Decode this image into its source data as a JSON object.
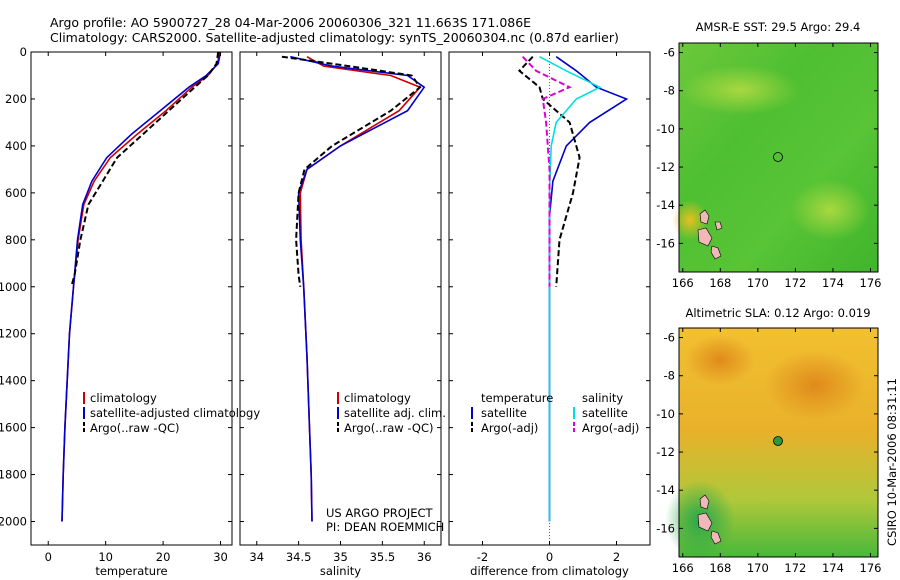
{
  "header": {
    "line1": "Argo profile: AO 5900727_28 04-Mar-2006 20060306_321 11.663S 171.086E",
    "line2": "Climatology: CARS2000. Satellite-adjusted climatology: synTS_20060304.nc (0.87d earlier)"
  },
  "colors": {
    "climatology": "#cc0000",
    "satellite": "#0000cc",
    "argo": "#000000",
    "sal_satellite": "#00e0e0",
    "sal_argo": "#dd00dd"
  },
  "chart_data": [
    {
      "type": "line",
      "xlabel": "temperature",
      "xlim": [
        -3,
        32
      ],
      "ylim": [
        2100,
        0
      ],
      "xticks": [
        0,
        10,
        20,
        30
      ],
      "yticks": [
        0,
        200,
        400,
        600,
        800,
        1000,
        1200,
        1400,
        1600,
        1800,
        2000
      ],
      "legend": [
        "climatology",
        "satellite-adjusted climatology",
        "Argo(..raw -QC)"
      ],
      "series": [
        {
          "name": "climatology",
          "style": "solid",
          "color": "#cc0000",
          "x": [
            29.8,
            29.5,
            27.8,
            25.0,
            20.5,
            15.5,
            10.8,
            8.0,
            6.2,
            5.2,
            4.4,
            3.7,
            3.3,
            2.9,
            2.6,
            2.4
          ],
          "y": [
            0,
            50,
            100,
            150,
            250,
            350,
            450,
            550,
            650,
            800,
            1000,
            1200,
            1400,
            1600,
            1800,
            2000
          ]
        },
        {
          "name": "satellite-adjusted climatology",
          "style": "solid",
          "color": "#0000cc",
          "x": [
            30.0,
            29.6,
            27.5,
            24.5,
            19.5,
            14.5,
            10.2,
            7.6,
            6.0,
            5.1,
            4.4,
            3.7,
            3.3,
            2.9,
            2.6,
            2.4
          ],
          "y": [
            0,
            50,
            100,
            150,
            250,
            350,
            450,
            550,
            650,
            800,
            1000,
            1200,
            1400,
            1600,
            1800,
            2000
          ]
        },
        {
          "name": "Argo(..raw -QC)",
          "style": "dash",
          "color": "#000000",
          "x": [
            29.6,
            29.3,
            27.8,
            25.5,
            21.0,
            16.5,
            12.0,
            9.5,
            7.0,
            5.6,
            4.6,
            4.0
          ],
          "y": [
            0,
            50,
            100,
            150,
            250,
            350,
            450,
            550,
            650,
            800,
            950,
            1000
          ]
        }
      ]
    },
    {
      "type": "line",
      "xlabel": "salinity",
      "xlim": [
        33.8,
        36.2
      ],
      "ylim": [
        2100,
        0
      ],
      "xticks": [
        34,
        34.5,
        35,
        35.5,
        36
      ],
      "legend": [
        "climatology",
        "satellite adj. clim.",
        "Argo(..raw -QC)"
      ],
      "series": [
        {
          "name": "climatology",
          "style": "solid",
          "color": "#cc0000",
          "x": [
            34.6,
            34.8,
            35.6,
            35.95,
            35.7,
            35.0,
            34.6,
            34.52,
            34.53,
            34.56,
            34.6,
            34.63,
            34.65,
            34.66
          ],
          "y": [
            20,
            60,
            100,
            150,
            250,
            400,
            500,
            600,
            800,
            1000,
            1300,
            1600,
            1800,
            2000
          ]
        },
        {
          "name": "satellite adj. clim.",
          "style": "solid",
          "color": "#0000cc",
          "x": [
            34.4,
            34.9,
            35.8,
            36.0,
            35.8,
            35.0,
            34.6,
            34.5,
            34.52,
            34.56,
            34.6,
            34.63,
            34.65,
            34.66
          ],
          "y": [
            20,
            60,
            100,
            150,
            250,
            400,
            500,
            600,
            800,
            1000,
            1300,
            1600,
            1800,
            2000
          ]
        },
        {
          "name": "Argo(..raw -QC)",
          "style": "dash",
          "color": "#000000",
          "x": [
            34.3,
            35.1,
            35.85,
            35.95,
            35.6,
            34.9,
            34.57,
            34.5,
            34.47,
            34.5,
            34.52
          ],
          "y": [
            20,
            60,
            100,
            150,
            250,
            400,
            500,
            600,
            800,
            950,
            1000
          ]
        }
      ]
    },
    {
      "type": "line",
      "xlabel": "difference from climatology",
      "xlim": [
        -3,
        3
      ],
      "ylim": [
        2100,
        0
      ],
      "xticks": [
        -2,
        0,
        2
      ],
      "legend_groups": [
        {
          "title": "temperature",
          "items": [
            "satellite",
            "Argo(-adj)"
          ]
        },
        {
          "title": "salinity",
          "items": [
            "satellite",
            "Argo(-adj)"
          ]
        }
      ],
      "series": [
        {
          "name": "temperature satellite",
          "style": "solid",
          "color": "#0000cc",
          "x": [
            0.2,
            0.8,
            1.4,
            2.3,
            1.2,
            0.5,
            0.1,
            0.0,
            0.0
          ],
          "y": [
            20,
            80,
            150,
            200,
            300,
            400,
            550,
            700,
            2000
          ]
        },
        {
          "name": "temperature Argo(-adj)",
          "style": "dash",
          "color": "#000000",
          "x": [
            -0.5,
            -0.9,
            -0.3,
            -0.2,
            0.6,
            0.9,
            0.7,
            0.3,
            0.2
          ],
          "y": [
            20,
            80,
            150,
            200,
            300,
            450,
            600,
            800,
            1000
          ]
        },
        {
          "name": "salinity satellite",
          "style": "solid",
          "color": "#00e0e0",
          "x": [
            -0.3,
            0.5,
            1.5,
            0.8,
            0.2,
            0.05,
            0.0,
            0.0
          ],
          "y": [
            20,
            80,
            150,
            200,
            300,
            400,
            600,
            2000
          ]
        },
        {
          "name": "salinity Argo(-adj)",
          "style": "dash",
          "color": "#dd00dd",
          "x": [
            -0.8,
            -0.4,
            0.6,
            -0.2,
            -0.1,
            0.0,
            0.0,
            0.0
          ],
          "y": [
            20,
            80,
            150,
            200,
            300,
            500,
            800,
            1000
          ]
        }
      ]
    },
    {
      "type": "heatmap",
      "title": "AMSR-E SST: 29.5 Argo: 29.4",
      "xlim": [
        165.8,
        176.4
      ],
      "ylim": [
        -17.5,
        -5.5
      ],
      "xticks": [
        166,
        168,
        170,
        172,
        174,
        176
      ],
      "yticks": [
        -6,
        -8,
        -10,
        -12,
        -14,
        -16
      ],
      "float": {
        "lon": 171.086,
        "lat": -11.663
      }
    },
    {
      "type": "heatmap",
      "title": "Altimetric SLA: 0.12 Argo: 0.019",
      "xlim": [
        165.8,
        176.4
      ],
      "ylim": [
        -17.5,
        -5.5
      ],
      "xticks": [
        166,
        168,
        170,
        172,
        174,
        176
      ],
      "yticks": [
        -6,
        -8,
        -10,
        -12,
        -14,
        -16
      ],
      "float": {
        "lon": 171.086,
        "lat": -11.663
      }
    }
  ],
  "annotations": {
    "project_line1": "US ARGO PROJECT",
    "project_line2": "PI: DEAN ROEMMICH",
    "stamp": "CSIRO 10-Mar-2006 08:31:11"
  }
}
